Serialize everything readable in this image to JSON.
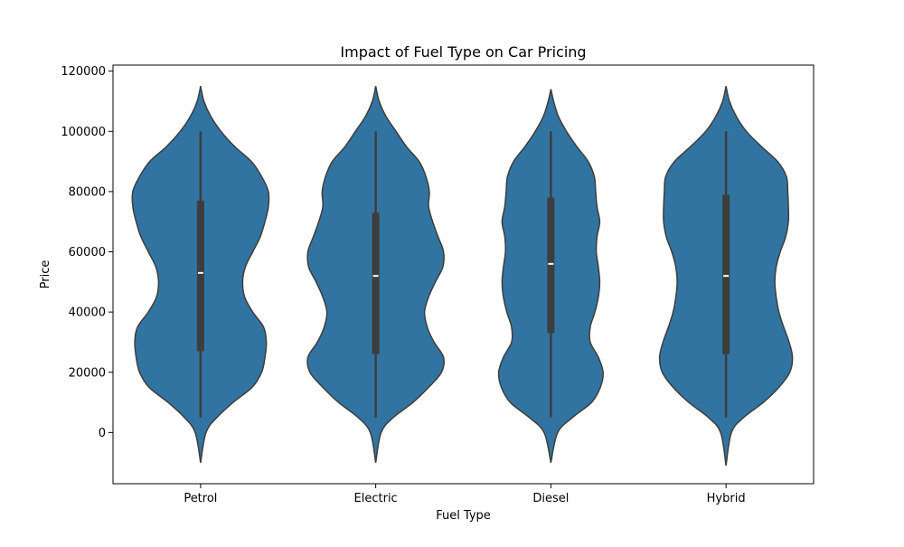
{
  "chart_data": {
    "type": "violin",
    "title": "Impact of Fuel Type on Car Pricing",
    "xlabel": "Fuel Type",
    "ylabel": "Price",
    "categories": [
      "Petrol",
      "Electric",
      "Diesel",
      "Hybrid"
    ],
    "ylim": [
      -17000,
      122000
    ],
    "yticks": [
      0,
      20000,
      40000,
      60000,
      80000,
      100000,
      120000
    ],
    "ytick_labels": [
      "0",
      "20000",
      "40000",
      "60000",
      "80000",
      "100000",
      "120000"
    ],
    "colors": {
      "violin": "#3274a1",
      "edge": "#3d3d3d",
      "box": "#3d3d3d",
      "median": "#ffffff"
    },
    "violins": [
      {
        "category": "Petrol",
        "min": 5000,
        "q1": 27000,
        "median": 53000,
        "q3": 77000,
        "max": 100000,
        "profile": [
          [
            -10000,
            0.0
          ],
          [
            0,
            0.08
          ],
          [
            5000,
            0.24
          ],
          [
            10000,
            0.48
          ],
          [
            15000,
            0.76
          ],
          [
            20000,
            0.9
          ],
          [
            25000,
            0.95
          ],
          [
            30000,
            0.97
          ],
          [
            35000,
            0.93
          ],
          [
            40000,
            0.77
          ],
          [
            45000,
            0.65
          ],
          [
            50000,
            0.62
          ],
          [
            55000,
            0.66
          ],
          [
            60000,
            0.77
          ],
          [
            65000,
            0.88
          ],
          [
            70000,
            0.95
          ],
          [
            75000,
            1.0
          ],
          [
            80000,
            1.0
          ],
          [
            85000,
            0.9
          ],
          [
            90000,
            0.75
          ],
          [
            95000,
            0.5
          ],
          [
            100000,
            0.3
          ],
          [
            105000,
            0.15
          ],
          [
            110000,
            0.05
          ],
          [
            115000,
            0.0
          ]
        ]
      },
      {
        "category": "Electric",
        "min": 5000,
        "q1": 26000,
        "median": 52000,
        "q3": 73000,
        "max": 100000,
        "profile": [
          [
            -10000,
            0.0
          ],
          [
            0,
            0.08
          ],
          [
            5000,
            0.26
          ],
          [
            10000,
            0.55
          ],
          [
            15000,
            0.78
          ],
          [
            20000,
            0.97
          ],
          [
            25000,
            1.0
          ],
          [
            30000,
            0.86
          ],
          [
            35000,
            0.76
          ],
          [
            40000,
            0.72
          ],
          [
            45000,
            0.78
          ],
          [
            50000,
            0.88
          ],
          [
            55000,
            0.99
          ],
          [
            60000,
            1.0
          ],
          [
            65000,
            0.92
          ],
          [
            70000,
            0.84
          ],
          [
            75000,
            0.78
          ],
          [
            80000,
            0.79
          ],
          [
            85000,
            0.74
          ],
          [
            90000,
            0.64
          ],
          [
            95000,
            0.45
          ],
          [
            100000,
            0.3
          ],
          [
            105000,
            0.15
          ],
          [
            110000,
            0.05
          ],
          [
            115000,
            0.0
          ]
        ]
      },
      {
        "category": "Diesel",
        "min": 5000,
        "q1": 33000,
        "median": 56000,
        "q3": 78000,
        "max": 100000,
        "profile": [
          [
            -10000,
            0.0
          ],
          [
            0,
            0.1
          ],
          [
            5000,
            0.32
          ],
          [
            10000,
            0.6
          ],
          [
            15000,
            0.73
          ],
          [
            20000,
            0.77
          ],
          [
            25000,
            0.7
          ],
          [
            30000,
            0.58
          ],
          [
            35000,
            0.58
          ],
          [
            40000,
            0.65
          ],
          [
            45000,
            0.7
          ],
          [
            50000,
            0.72
          ],
          [
            55000,
            0.7
          ],
          [
            60000,
            0.67
          ],
          [
            65000,
            0.68
          ],
          [
            70000,
            0.72
          ],
          [
            75000,
            0.68
          ],
          [
            80000,
            0.66
          ],
          [
            85000,
            0.64
          ],
          [
            90000,
            0.55
          ],
          [
            95000,
            0.38
          ],
          [
            100000,
            0.23
          ],
          [
            105000,
            0.11
          ],
          [
            110000,
            0.04
          ],
          [
            114000,
            0.0
          ]
        ]
      },
      {
        "category": "Hybrid",
        "min": 5000,
        "q1": 26000,
        "median": 52000,
        "q3": 79000,
        "max": 100000,
        "profile": [
          [
            -11000,
            0.0
          ],
          [
            0,
            0.08
          ],
          [
            5000,
            0.26
          ],
          [
            10000,
            0.55
          ],
          [
            15000,
            0.78
          ],
          [
            20000,
            0.94
          ],
          [
            25000,
            0.98
          ],
          [
            30000,
            0.93
          ],
          [
            35000,
            0.85
          ],
          [
            40000,
            0.78
          ],
          [
            45000,
            0.74
          ],
          [
            50000,
            0.72
          ],
          [
            55000,
            0.74
          ],
          [
            60000,
            0.8
          ],
          [
            65000,
            0.88
          ],
          [
            70000,
            0.92
          ],
          [
            75000,
            0.92
          ],
          [
            80000,
            0.91
          ],
          [
            85000,
            0.89
          ],
          [
            90000,
            0.76
          ],
          [
            95000,
            0.52
          ],
          [
            100000,
            0.3
          ],
          [
            105000,
            0.15
          ],
          [
            110000,
            0.05
          ],
          [
            115000,
            0.0
          ]
        ]
      }
    ]
  }
}
